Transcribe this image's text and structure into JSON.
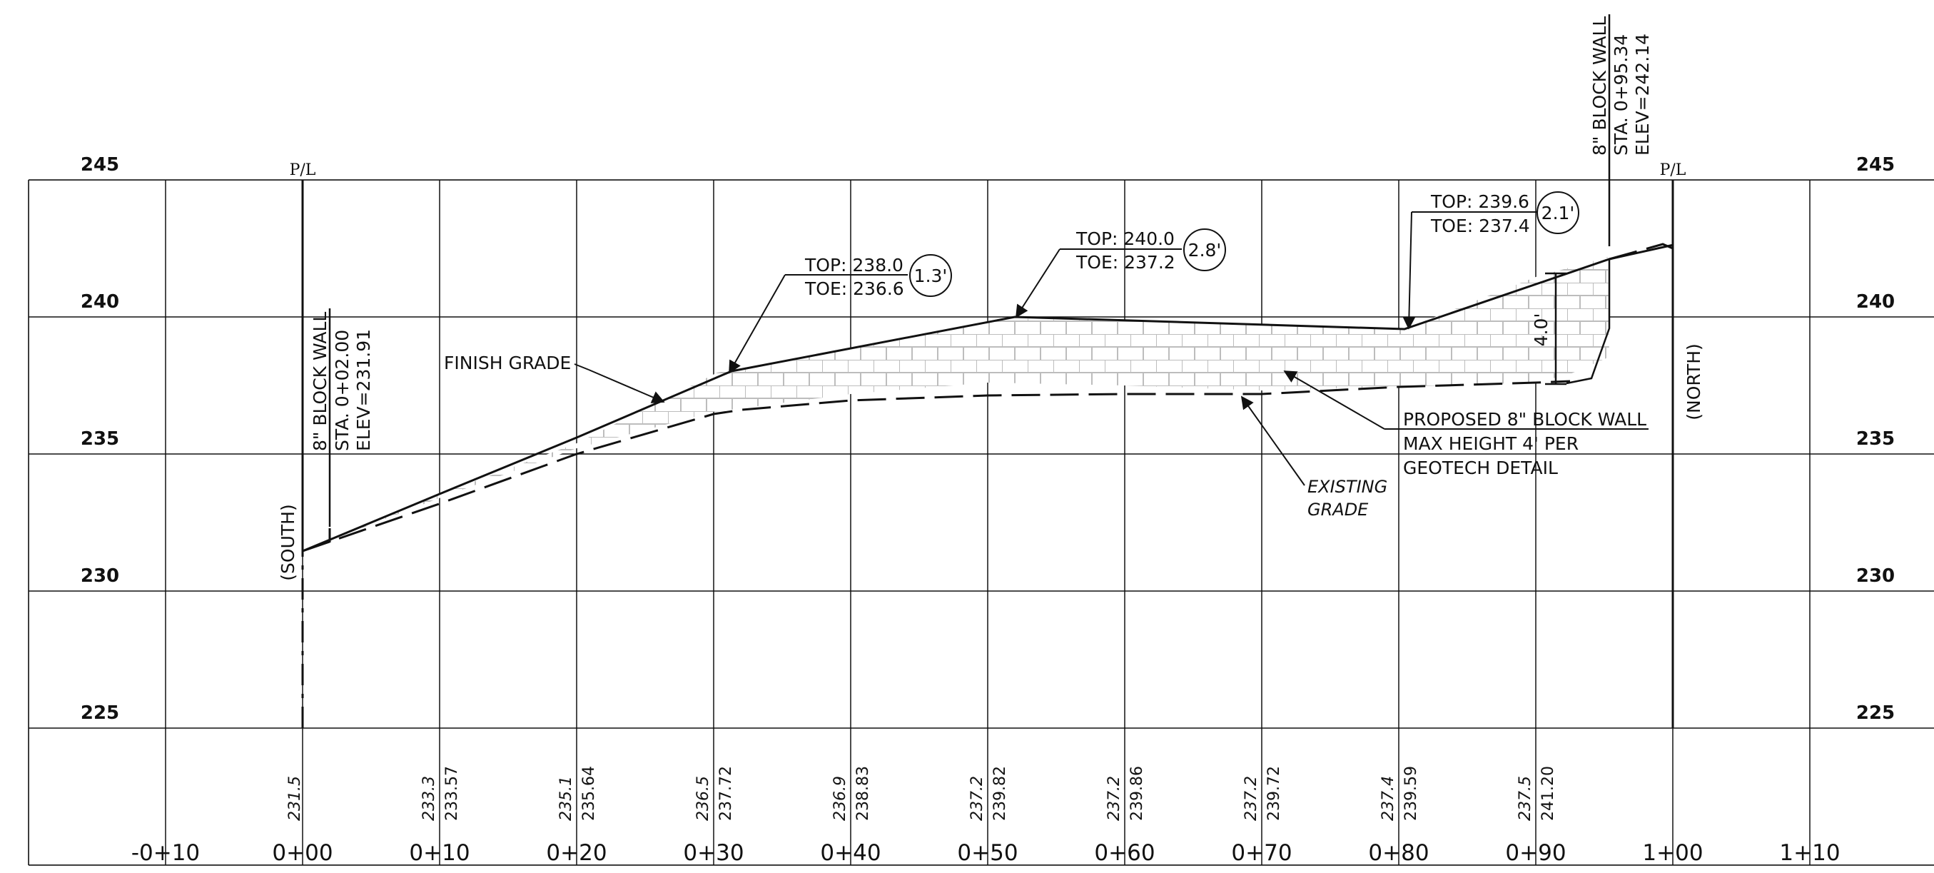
{
  "elevations": [
    "245",
    "240",
    "235",
    "230",
    "225"
  ],
  "stations": [
    "-0+10",
    "0+00",
    "0+10",
    "0+20",
    "0+30",
    "0+40",
    "0+50",
    "0+60",
    "0+70",
    "0+80",
    "0+90",
    "1+00",
    "1+10"
  ],
  "property_line_label": "P/L",
  "direction": {
    "south": "(SOUTH)",
    "north": "(NORTH)"
  },
  "finish_grade_label": "FINISH GRADE",
  "existing_grade_label": [
    "EXISTING",
    "GRADE"
  ],
  "proposed_wall_note": [
    "PROPOSED 8\" BLOCK WALL",
    "MAX HEIGHT 4' PER",
    "GEOTECH DETAIL"
  ],
  "wall_start": [
    "8\" BLOCK WALL",
    "STA. 0+02.00",
    "ELEV=231.91"
  ],
  "wall_end": [
    "8\" BLOCK WALL",
    "STA. 0+95.34",
    "ELEV=242.14"
  ],
  "callouts": [
    {
      "top": "TOP: 238.0",
      "toe": "TOE: 236.6",
      "height": "1.3'"
    },
    {
      "top": "TOP: 240.0",
      "toe": "TOE: 237.2",
      "height": "2.8'"
    },
    {
      "top": "TOP: 239.6",
      "toe": "TOE: 237.4",
      "height": "2.1'"
    }
  ],
  "max_height_dim": "4.0'",
  "bottom_values": [
    {
      "existing": "231.5",
      "finish": ""
    },
    {
      "existing": "233.3",
      "finish": "233.57"
    },
    {
      "existing": "235.1",
      "finish": "235.64"
    },
    {
      "existing": "236.5",
      "finish": "237.72"
    },
    {
      "existing": "236.9",
      "finish": "238.83"
    },
    {
      "existing": "237.2",
      "finish": "239.82"
    },
    {
      "existing": "237.2",
      "finish": "239.86"
    },
    {
      "existing": "237.2",
      "finish": "239.72"
    },
    {
      "existing": "237.4",
      "finish": "239.59"
    },
    {
      "existing": "237.5",
      "finish": "241.20"
    }
  ]
}
